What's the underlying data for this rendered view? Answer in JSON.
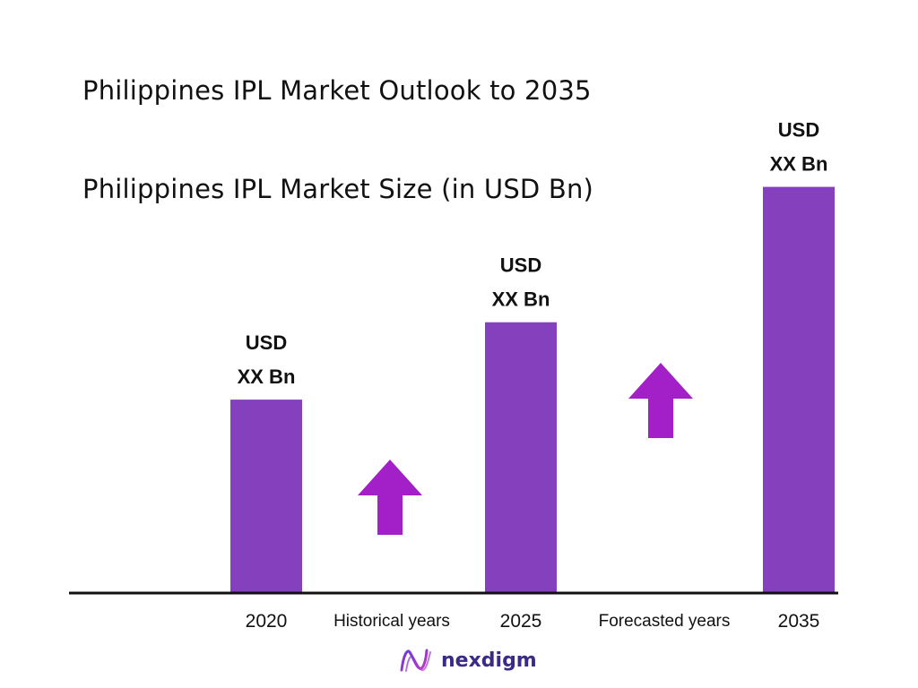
{
  "chart_data": {
    "type": "bar",
    "title": "Philippines IPL Market Outlook to 2035",
    "subtitle": "Philippines IPL Market Size (in USD Bn)",
    "categories": [
      "2020",
      "2025",
      "2035"
    ],
    "values": [
      1.0,
      1.4,
      2.1
    ],
    "value_labels": [
      {
        "line1": "USD",
        "line2": "XX Bn"
      },
      {
        "line1": "USD",
        "line2": "XX Bn"
      },
      {
        "line1": "USD",
        "line2": "XX Bn"
      }
    ],
    "period_labels": [
      "Historical years",
      "Forecasted years"
    ],
    "ylim": [
      0,
      2.2
    ],
    "grid": false,
    "colors": {
      "bar": "#8440bd",
      "arrow": "#a31fc8",
      "axis": "#111111",
      "text": "#111111"
    }
  },
  "brand": {
    "name": "nexdigm",
    "icon": "nexdigm-logo-icon",
    "color": "#3b2a86"
  }
}
